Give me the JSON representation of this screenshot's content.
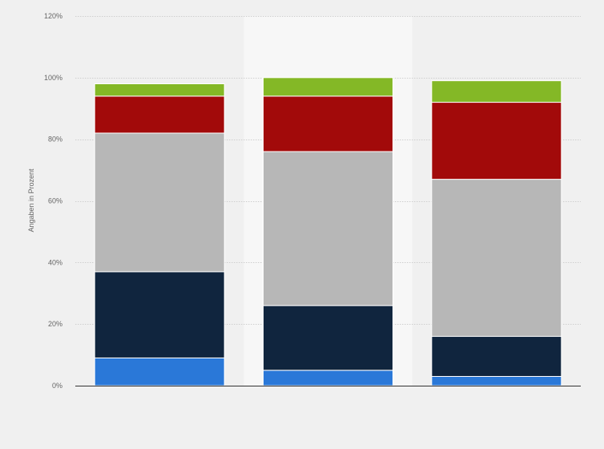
{
  "chart_data": {
    "type": "bar",
    "stacked": true,
    "categories": [
      "",
      "",
      ""
    ],
    "ylabel": "Angaben in Prozent",
    "ylim": [
      0,
      120
    ],
    "yticks": [
      0,
      20,
      40,
      60,
      80,
      100,
      120
    ],
    "ytick_labels": [
      "0%",
      "20%",
      "40%",
      "60%",
      "80%",
      "100%",
      "120%"
    ],
    "grid": true,
    "highlighted_category_index": 1,
    "series": [
      {
        "values": [
          9,
          5,
          3
        ],
        "color": "#2a78d8"
      },
      {
        "values": [
          28,
          21,
          13
        ],
        "color": "#10253e"
      },
      {
        "values": [
          45,
          50,
          51
        ],
        "color": "#b7b7b7"
      },
      {
        "values": [
          12,
          18,
          25
        ],
        "color": "#a20a0a"
      },
      {
        "values": [
          4,
          6,
          7
        ],
        "color": "#84b826"
      }
    ]
  }
}
